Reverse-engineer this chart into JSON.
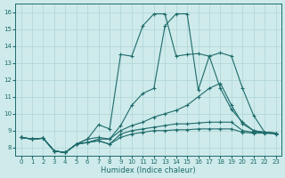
{
  "xlabel": "Humidex (Indice chaleur)",
  "background_color": "#ceeaeb",
  "grid_color": "#afd4d5",
  "line_color": "#1e6b6b",
  "xlim": [
    -0.5,
    23.5
  ],
  "ylim": [
    7.5,
    16.5
  ],
  "xticks": [
    0,
    1,
    2,
    3,
    4,
    5,
    6,
    7,
    8,
    9,
    10,
    11,
    12,
    13,
    14,
    15,
    16,
    17,
    18,
    19,
    20,
    21,
    22,
    23
  ],
  "yticks": [
    8,
    9,
    10,
    11,
    12,
    13,
    14,
    15,
    16
  ],
  "lines": [
    {
      "x": [
        0,
        1,
        2,
        3,
        4,
        5,
        6,
        7,
        8,
        9,
        10,
        11,
        12,
        13,
        14,
        15,
        16,
        17,
        18,
        19,
        20,
        21,
        22,
        23
      ],
      "y": [
        8.6,
        8.5,
        8.55,
        7.8,
        7.7,
        8.2,
        8.5,
        9.35,
        9.1,
        13.5,
        13.4,
        15.2,
        15.9,
        15.9,
        13.4,
        13.5,
        13.55,
        13.4,
        11.5,
        10.25,
        9.5,
        9.0,
        8.9,
        8.85
      ]
    },
    {
      "x": [
        0,
        1,
        2,
        3,
        4,
        5,
        6,
        7,
        8,
        9,
        10,
        11,
        12,
        13,
        14,
        15,
        16,
        17,
        18,
        19,
        20,
        21,
        22,
        23
      ],
      "y": [
        8.6,
        8.5,
        8.55,
        7.8,
        7.7,
        8.2,
        8.5,
        8.6,
        8.5,
        9.3,
        10.5,
        11.2,
        11.5,
        15.2,
        15.9,
        15.9,
        11.4,
        13.4,
        13.6,
        13.4,
        11.5,
        9.9,
        8.9,
        8.85
      ]
    },
    {
      "x": [
        0,
        1,
        2,
        3,
        4,
        5,
        6,
        7,
        8,
        9,
        10,
        11,
        12,
        13,
        14,
        15,
        16,
        17,
        18,
        19,
        20,
        21,
        22,
        23
      ],
      "y": [
        8.6,
        8.5,
        8.55,
        7.8,
        7.7,
        8.2,
        8.3,
        8.5,
        8.5,
        9.0,
        9.3,
        9.5,
        9.8,
        10.0,
        10.2,
        10.5,
        11.0,
        11.5,
        11.8,
        10.5,
        9.4,
        9.0,
        8.9,
        8.85
      ]
    },
    {
      "x": [
        0,
        1,
        2,
        3,
        4,
        5,
        6,
        7,
        8,
        9,
        10,
        11,
        12,
        13,
        14,
        15,
        16,
        17,
        18,
        19,
        20,
        21,
        22,
        23
      ],
      "y": [
        8.6,
        8.5,
        8.55,
        7.8,
        7.7,
        8.2,
        8.3,
        8.4,
        8.2,
        8.8,
        9.0,
        9.1,
        9.2,
        9.3,
        9.4,
        9.4,
        9.45,
        9.5,
        9.5,
        9.5,
        9.0,
        8.9,
        8.9,
        8.85
      ]
    },
    {
      "x": [
        0,
        1,
        2,
        3,
        4,
        5,
        6,
        7,
        8,
        9,
        10,
        11,
        12,
        13,
        14,
        15,
        16,
        17,
        18,
        19,
        20,
        21,
        22,
        23
      ],
      "y": [
        8.6,
        8.5,
        8.55,
        7.8,
        7.7,
        8.2,
        8.3,
        8.4,
        8.2,
        8.6,
        8.8,
        8.9,
        9.0,
        9.0,
        9.05,
        9.05,
        9.1,
        9.1,
        9.1,
        9.1,
        8.9,
        8.85,
        8.85,
        8.8
      ]
    }
  ]
}
